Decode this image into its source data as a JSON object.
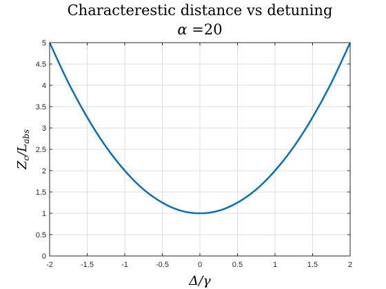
{
  "chart_data": {
    "type": "line",
    "title": "Characterestic distance vs detuning",
    "subtitle_prefix": "α =",
    "subtitle_value": "20",
    "xlabel": "Δ/γ",
    "ylabel_main": "Z",
    "ylabel_sub1": "c",
    "ylabel_div": "/L",
    "ylabel_sub2": "abs",
    "xlim": [
      -2,
      2
    ],
    "ylim": [
      0,
      5
    ],
    "xticks": [
      -2,
      -1.5,
      -1,
      -0.5,
      0,
      0.5,
      1,
      1.5,
      2
    ],
    "xtick_labels": [
      "-2",
      "-1.5",
      "-1",
      "-0.5",
      "0",
      "0.5",
      "1",
      "1.5",
      "2"
    ],
    "yticks": [
      0,
      0.5,
      1,
      1.5,
      2,
      2.5,
      3,
      3.5,
      4,
      4.5,
      5
    ],
    "ytick_labels": [
      "0",
      "0.5",
      "1",
      "1.5",
      "2",
      "2.5",
      "3",
      "3.5",
      "4",
      "4.5",
      "5"
    ],
    "grid": true,
    "color": "#0072BD",
    "series": [
      {
        "x": [
          -2,
          -1.75,
          -1.5,
          -1.25,
          -1,
          -0.75,
          -0.5,
          -0.25,
          0,
          0.25,
          0.5,
          0.75,
          1,
          1.25,
          1.5,
          1.75,
          2
        ],
        "y": [
          5,
          4.06,
          3.25,
          2.56,
          2,
          1.56,
          1.25,
          1.06,
          1,
          1.06,
          1.25,
          1.56,
          2,
          2.56,
          3.25,
          4.06,
          5
        ]
      }
    ]
  }
}
